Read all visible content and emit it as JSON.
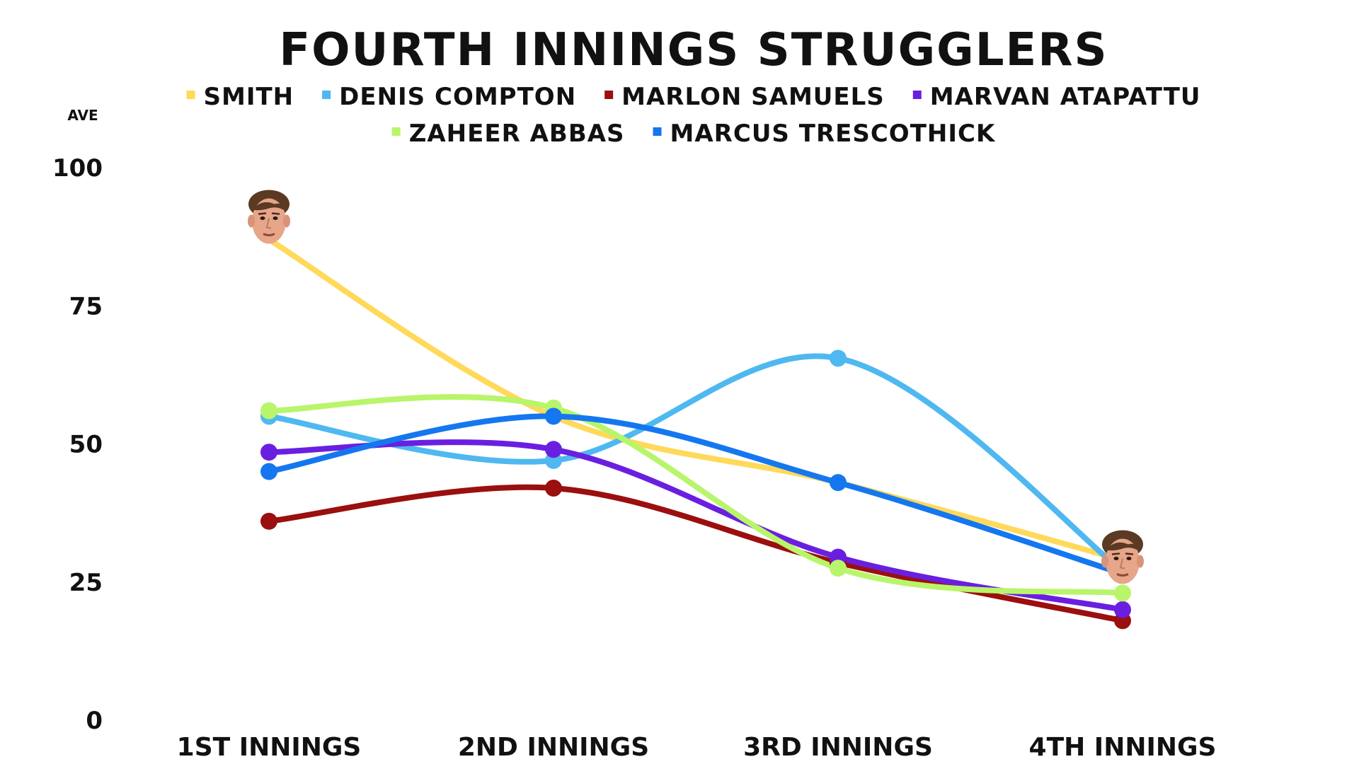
{
  "chart_data": {
    "type": "line",
    "title": "FOURTH INNINGS STRUGGLERS",
    "ylabel": "AVE",
    "xlabel": "",
    "categories": [
      "1ST INNINGS",
      "2ND INNINGS",
      "3RD INNINGS",
      "4TH INNINGS"
    ],
    "ylim": [
      0,
      100
    ],
    "yticks": [
      0,
      25,
      50,
      75,
      100
    ],
    "grid": false,
    "legend_position": "top",
    "smooth": true,
    "series": [
      {
        "name": "SMITH",
        "color": "#FFD95A",
        "values": [
          87,
          55,
          43,
          29
        ],
        "markers": false
      },
      {
        "name": "DENIS COMPTON",
        "color": "#4FB8F0",
        "values": [
          55,
          47,
          65.5,
          27
        ],
        "markers": true
      },
      {
        "name": "MARLON SAMUELS",
        "color": "#9B0F0F",
        "values": [
          36,
          42,
          28.5,
          18
        ],
        "markers": true
      },
      {
        "name": "MARVAN ATAPATTU",
        "color": "#6A1FE0",
        "values": [
          48.5,
          49,
          29.5,
          20
        ],
        "markers": true
      },
      {
        "name": "ZAHEER ABBAS",
        "color": "#B8F56A",
        "values": [
          56,
          56.5,
          27.5,
          23
        ],
        "markers": true
      },
      {
        "name": "MARCUS TRESCOTHICK",
        "color": "#1477F0",
        "values": [
          45,
          55,
          43,
          26.5
        ],
        "markers": true
      }
    ],
    "annotations": [
      {
        "type": "face-icon",
        "name": "player-face-icon",
        "series": "SMITH",
        "point": 0
      },
      {
        "type": "face-icon",
        "name": "player-face-icon",
        "series": "SMITH",
        "point": 3
      }
    ]
  }
}
